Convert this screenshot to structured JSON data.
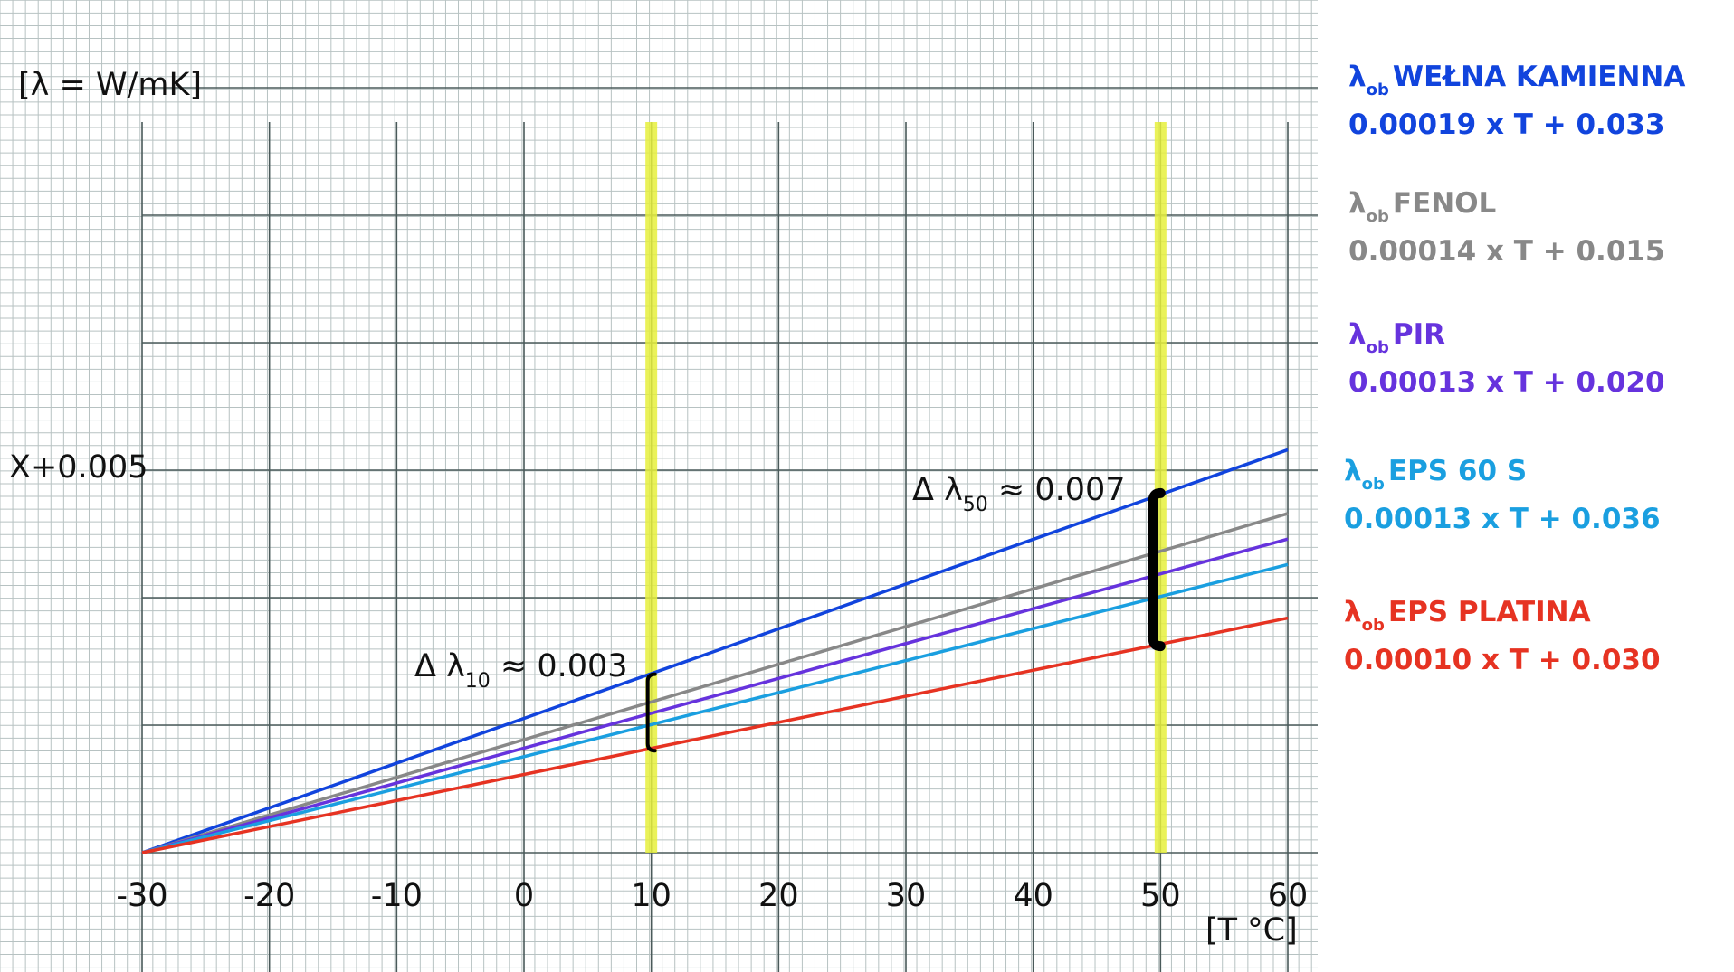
{
  "chart_data": {
    "type": "line",
    "ylabel": "[λ = W/mK]",
    "xlabel": "[T °C]",
    "x_ticks": [
      -30,
      -20,
      -10,
      0,
      10,
      20,
      30,
      40,
      50,
      60
    ],
    "x_tick_labels": [
      "-30",
      "-20",
      "-10",
      "0",
      "10",
      "20",
      "30",
      "40",
      "50",
      "60"
    ],
    "xlim": [
      -30,
      60
    ],
    "y_tick_label": "X+0.005",
    "y_tick_value": 0.005,
    "ylim": [
      0,
      0.015
    ],
    "grid": true,
    "series": [
      {
        "name": "WEŁNA KAMIENNA",
        "equation": "0.00019 x T + 0.033",
        "color": "#1144dd",
        "x": [
          -30,
          60
        ],
        "y": [
          0,
          0.0158
        ]
      },
      {
        "name": "FENOL",
        "equation": "0.00014 x T + 0.015",
        "color": "#888888",
        "x": [
          -30,
          60
        ],
        "y": [
          0,
          0.0133
        ]
      },
      {
        "name": "PIR",
        "equation": "0.00013 x T + 0.020",
        "color": "#6633dd",
        "x": [
          -30,
          60
        ],
        "y": [
          0,
          0.0123
        ]
      },
      {
        "name": "EPS 60 S",
        "equation": "0.00013 x T + 0.036",
        "color": "#1a9fe0",
        "x": [
          -30,
          60
        ],
        "y": [
          0,
          0.0113
        ]
      },
      {
        "name": "EPS PLATINA",
        "equation": "0.00010 x T + 0.030",
        "color": "#e63322",
        "x": [
          -30,
          60
        ],
        "y": [
          0,
          0.0092
        ]
      }
    ],
    "highlights": [
      {
        "x": 10,
        "color": "#e6f03c"
      },
      {
        "x": 50,
        "color": "#e6f03c"
      }
    ],
    "annotations": [
      {
        "prefix": "Δ λ",
        "sub": "10",
        "suffix": "≈ 0.003",
        "x": 10,
        "y_top": 0.007,
        "y_bottom": 0.004
      },
      {
        "prefix": "Δ λ",
        "sub": "50",
        "suffix": "≈ 0.007",
        "x": 50,
        "y_top": 0.0141,
        "y_bottom": 0.0081
      }
    ],
    "legend_position": "right",
    "legend_symbol": "λ",
    "legend_symbol_sub": "ob"
  }
}
